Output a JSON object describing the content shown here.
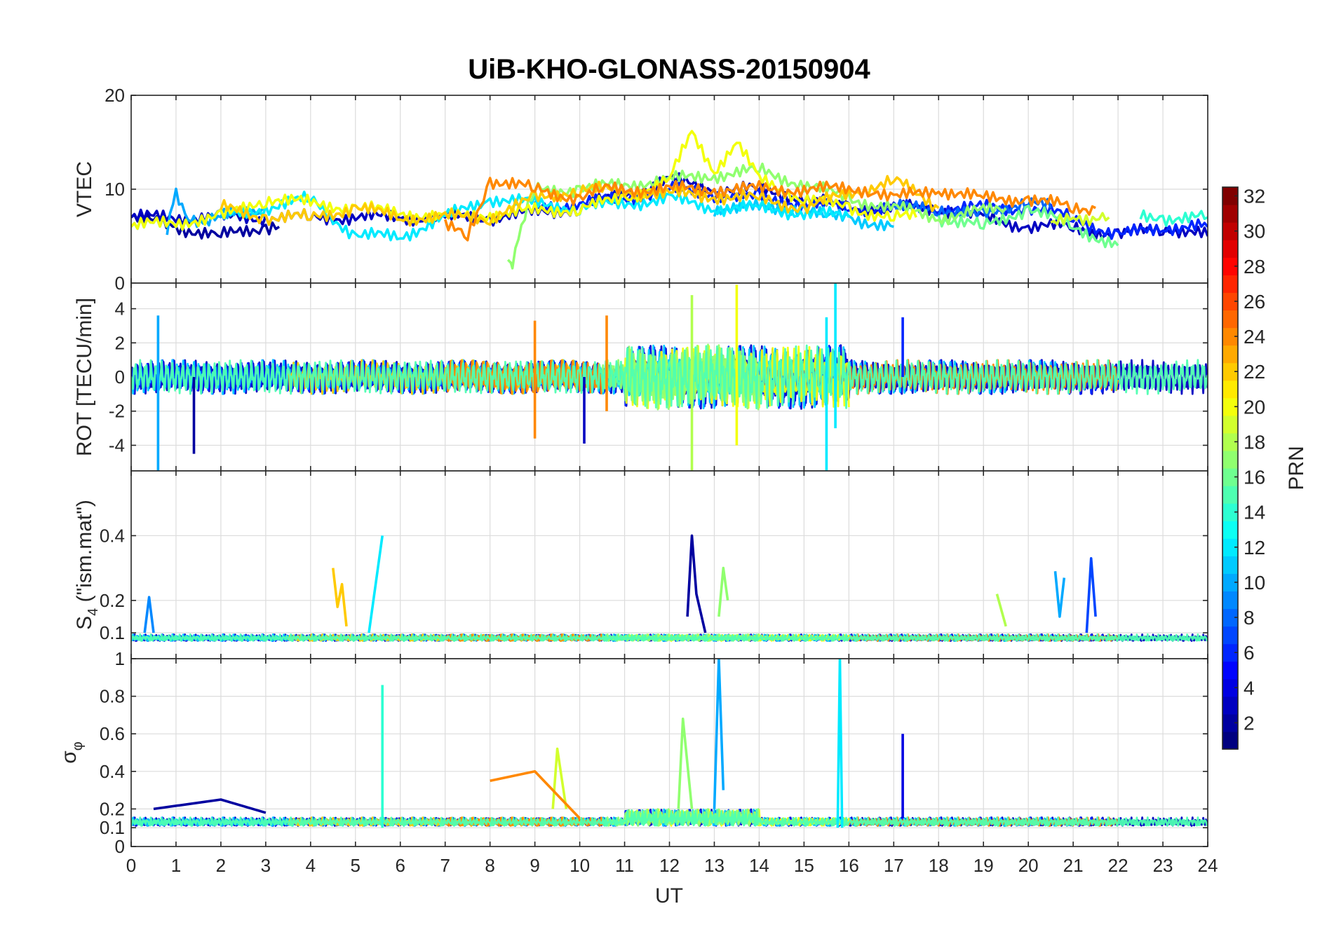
{
  "chart_data": {
    "type": "line",
    "title": "UiB-KHO-GLONASS-20150904",
    "xlabel": "UT",
    "xlim": [
      0,
      24
    ],
    "xticks": [
      "0",
      "1",
      "2",
      "3",
      "4",
      "5",
      "6",
      "7",
      "8",
      "9",
      "10",
      "11",
      "12",
      "13",
      "14",
      "15",
      "16",
      "17",
      "18",
      "19",
      "20",
      "21",
      "22",
      "23",
      "24"
    ],
    "grid": true,
    "colormap": "jet",
    "colorbar": {
      "label": "PRN",
      "range": [
        1,
        32
      ],
      "ticks": [
        "2",
        "4",
        "6",
        "8",
        "10",
        "12",
        "14",
        "16",
        "18",
        "20",
        "22",
        "24",
        "26",
        "28",
        "30",
        "32"
      ]
    },
    "panels": [
      {
        "ylabel": "VTEC",
        "ylim": [
          0,
          20
        ],
        "yticks": [
          "0",
          "10",
          "20"
        ],
        "series": [
          {
            "name": "PRN 2",
            "x": [
              0,
              1,
              2,
              3,
              3.3
            ],
            "y": [
              7,
              6,
              5,
              6,
              6
            ]
          },
          {
            "name": "PRN 3",
            "x": [
              0,
              2,
              4,
              6,
              8,
              10,
              12,
              13,
              14,
              16,
              18,
              19,
              20,
              21,
              22,
              23,
              24
            ],
            "y": [
              7,
              7,
              7,
              7,
              7,
              8,
              11,
              10,
              10,
              8,
              8,
              7,
              6,
              6,
              5,
              6,
              5
            ]
          },
          {
            "name": "PRN 6",
            "x": [
              9,
              11,
              12,
              14,
              16,
              18,
              20,
              21,
              22,
              23,
              24
            ],
            "y": [
              8,
              9,
              10,
              9,
              8,
              8,
              8,
              7,
              5,
              6,
              6
            ]
          },
          {
            "name": "PRN 8",
            "x": [
              17,
              18,
              19,
              20,
              20.5
            ],
            "y": [
              8,
              8,
              7,
              9,
              8
            ]
          },
          {
            "name": "PRN 10",
            "x": [
              0.8,
              1,
              1.2,
              1.6,
              2,
              3
            ],
            "y": [
              6,
              10,
              7,
              6,
              7,
              8
            ]
          },
          {
            "name": "PRN 11",
            "x": [
              13,
              15,
              15.5,
              16,
              17
            ],
            "y": [
              8,
              8,
              7,
              7,
              6
            ]
          },
          {
            "name": "PRN 12",
            "x": [
              0,
              2,
              4,
              5,
              6,
              7,
              8,
              10,
              12,
              13,
              14,
              16
            ],
            "y": [
              6,
              7,
              9,
              5,
              5,
              7,
              9,
              8,
              9,
              8,
              8,
              7
            ]
          },
          {
            "name": "PRN 14",
            "x": [
              22.5,
              23,
              24
            ],
            "y": [
              7,
              7,
              7
            ]
          },
          {
            "name": "PRN 16",
            "x": [
              18,
              19,
              20,
              21,
              22
            ],
            "y": [
              7,
              6,
              8,
              6,
              4
            ]
          },
          {
            "name": "PRN 17",
            "x": [
              8.4,
              8.5,
              8.7,
              9,
              10,
              12,
              14,
              16,
              18,
              19.5
            ],
            "y": [
              3,
              2,
              6,
              10,
              10,
              11,
              12,
              9,
              7,
              8
            ]
          },
          {
            "name": "PRN 19",
            "x": [
              20.5,
              21,
              21.8
            ],
            "y": [
              6,
              7,
              7
            ]
          },
          {
            "name": "PRN 20",
            "x": [
              0,
              2,
              3,
              5,
              7,
              10,
              11,
              12,
              12.5,
              13,
              13.5,
              14,
              15,
              16,
              17,
              17.5
            ],
            "y": [
              6,
              7,
              9,
              8,
              7,
              8,
              9,
              11,
              16,
              12,
              15,
              11,
              9,
              8,
              7,
              7
            ]
          },
          {
            "name": "PRN 22",
            "x": [
              2,
              3,
              4,
              5,
              6,
              8,
              9,
              10,
              14,
              15,
              17,
              18
            ],
            "y": [
              8,
              7,
              7,
              8,
              7,
              7,
              9,
              10,
              9,
              8,
              11,
              8
            ]
          },
          {
            "name": "PRN 24",
            "x": [
              7,
              7.5,
              8,
              9,
              10,
              10.5,
              16.5,
              17,
              18,
              19,
              20,
              21,
              21.5
            ],
            "y": [
              6,
              5,
              11,
              10,
              9,
              10,
              10,
              9,
              10,
              9,
              9,
              8,
              8
            ]
          }
        ]
      },
      {
        "ylabel": "ROT [TECU/min]",
        "ylim": [
          -5.5,
          5.5
        ],
        "yticks": [
          "-4",
          "-2",
          "0",
          "2",
          "4"
        ],
        "series": [
          {
            "name": "PRN 2 spike",
            "x": [
              1.4,
              1.4
            ],
            "y": [
              0,
              -4.5
            ]
          },
          {
            "name": "PRN 3 spike",
            "x": [
              10.1,
              10.1
            ],
            "y": [
              0,
              -3.9
            ]
          },
          {
            "name": "PRN 6 spike",
            "x": [
              17.2,
              17.2
            ],
            "y": [
              0,
              3.5
            ]
          },
          {
            "name": "PRN 10 spike",
            "x": [
              0.6,
              0.6
            ],
            "y": [
              3.6,
              -5.5
            ]
          },
          {
            "name": "PRN 12 spike A",
            "x": [
              15.5,
              15.5
            ],
            "y": [
              3.5,
              -5.5
            ]
          },
          {
            "name": "PRN 12 spike B",
            "x": [
              15.7,
              15.7
            ],
            "y": [
              5.5,
              -3
            ]
          },
          {
            "name": "PRN 18 spike",
            "x": [
              12.5,
              12.5
            ],
            "y": [
              4.8,
              -5.5
            ]
          },
          {
            "name": "PRN 20 spike",
            "x": [
              13.5,
              13.5
            ],
            "y": [
              5.4,
              -4
            ]
          },
          {
            "name": "PRN 24 spike A",
            "x": [
              9,
              9
            ],
            "y": [
              3.3,
              -3.6
            ]
          },
          {
            "name": "PRN 24 spike B",
            "x": [
              10.6,
              10.6
            ],
            "y": [
              3.6,
              -2
            ]
          }
        ]
      },
      {
        "ylabel": "S4 (\"ism.mat\")",
        "ylabel_main": "S",
        "ylabel_sub": "4",
        "ylabel_rest": " (\"ism.mat\")",
        "ylim": [
          0.02,
          0.6
        ],
        "yticks": [
          "0.1",
          "0.2",
          "0.4"
        ],
        "series": [
          {
            "name": "PRN 2",
            "x": [
              12.4,
              12.5,
              12.6,
              12.8
            ],
            "y": [
              0.15,
              0.4,
              0.22,
              0.1
            ]
          },
          {
            "name": "PRN 7",
            "x": [
              21.3,
              21.4,
              21.5
            ],
            "y": [
              0.1,
              0.33,
              0.15
            ]
          },
          {
            "name": "PRN 9",
            "x": [
              0.3,
              0.4,
              0.5
            ],
            "y": [
              0.1,
              0.21,
              0.1
            ]
          },
          {
            "name": "PRN 10",
            "x": [
              20.6,
              20.7,
              20.8
            ],
            "y": [
              0.29,
              0.15,
              0.27
            ]
          },
          {
            "name": "PRN 12",
            "x": [
              5.3,
              5.5,
              5.6
            ],
            "y": [
              0.1,
              0.3,
              0.4
            ]
          },
          {
            "name": "PRN 17",
            "x": [
              13.1,
              13.2,
              13.3
            ],
            "y": [
              0.15,
              0.3,
              0.2
            ]
          },
          {
            "name": "PRN 18",
            "x": [
              19.3,
              19.5
            ],
            "y": [
              0.22,
              0.12
            ]
          },
          {
            "name": "PRN 22",
            "x": [
              4.5,
              4.6,
              4.7,
              4.8
            ],
            "y": [
              0.3,
              0.18,
              0.25,
              0.12
            ]
          }
        ]
      },
      {
        "ylabel": "σφ",
        "ylabel_main": "σ",
        "ylabel_sub": "φ",
        "ylim": [
          0,
          1
        ],
        "yticks": [
          "0",
          "0.1",
          "0.2",
          "0.4",
          "0.6",
          "0.8",
          "1"
        ],
        "series": [
          {
            "name": "PRN 2",
            "x": [
              0.5,
              2,
              3
            ],
            "y": [
              0.2,
              0.25,
              0.18
            ]
          },
          {
            "name": "PRN 4",
            "x": [
              17.2,
              17.2
            ],
            "y": [
              0.15,
              0.6
            ]
          },
          {
            "name": "PRN 10",
            "x": [
              13,
              13.1,
              13.2
            ],
            "y": [
              0.2,
              1.0,
              0.3
            ]
          },
          {
            "name": "PRN 12",
            "x": [
              15.75,
              15.8,
              15.85
            ],
            "y": [
              0.1,
              1.0,
              0.1
            ]
          },
          {
            "name": "PRN 14",
            "x": [
              5.6,
              5.6
            ],
            "y": [
              0.1,
              0.86
            ]
          },
          {
            "name": "PRN 17",
            "x": [
              12.2,
              12.3,
              12.5
            ],
            "y": [
              0.2,
              0.68,
              0.2
            ]
          },
          {
            "name": "PRN 19",
            "x": [
              9.4,
              9.5,
              9.7
            ],
            "y": [
              0.2,
              0.52,
              0.2
            ]
          },
          {
            "name": "PRN 24",
            "x": [
              8,
              9,
              10
            ],
            "y": [
              0.35,
              0.4,
              0.15
            ]
          }
        ]
      }
    ]
  }
}
